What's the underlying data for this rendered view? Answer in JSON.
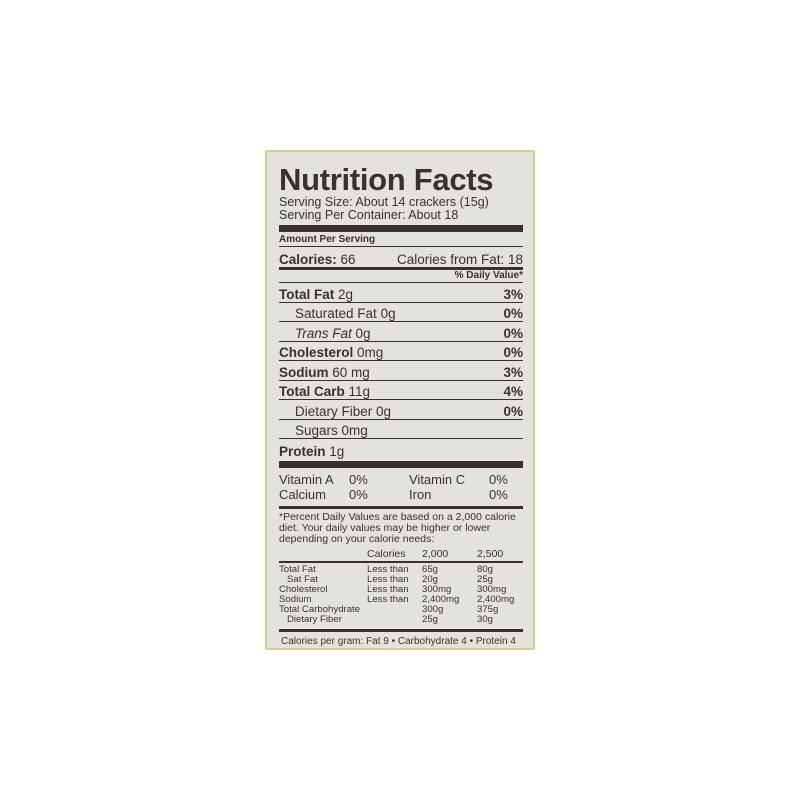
{
  "title": "Nutrition Facts",
  "serving_size": "Serving Size: About 14 crackers (15g)",
  "servings_per_container": "Serving Per Container: About 18",
  "amount_per_serving": "Amount Per Serving",
  "calories_label": "Calories:",
  "calories_value": "66",
  "calories_from_fat": "Calories from Fat: 18",
  "daily_value_header": "% Daily Value*",
  "nutrients": [
    {
      "name": "Total Fat",
      "amount": "2g",
      "dv": "3%"
    },
    {
      "name": "Saturated Fat",
      "amount": "0g",
      "dv": "0%"
    },
    {
      "name": "Trans Fat",
      "amount": "0g",
      "dv": "0%"
    },
    {
      "name": "Cholesterol",
      "amount": "0mg",
      "dv": "0%"
    },
    {
      "name": "Sodium",
      "amount": "60 mg",
      "dv": "3%"
    },
    {
      "name": "Total Carb",
      "amount": "11g",
      "dv": "4%"
    },
    {
      "name": "Dietary Fiber",
      "amount": "0g",
      "dv": "0%"
    },
    {
      "name": "Sugars",
      "amount": "0mg",
      "dv": ""
    },
    {
      "name": "Protein",
      "amount": "1g",
      "dv": ""
    }
  ],
  "vitamins": [
    {
      "name": "Vitamin A",
      "dv": "0%"
    },
    {
      "name": "Vitamin C",
      "dv": "0%"
    },
    {
      "name": "Calcium",
      "dv": "0%"
    },
    {
      "name": "Iron",
      "dv": "0%"
    }
  ],
  "footnote": "*Percent Daily Values are based on a 2,000 calorie diet. Your daily values may be higher or lower depending on your calorie needs:",
  "dv_table": {
    "header": [
      "",
      "Calories",
      "2,000",
      "2,500"
    ],
    "rows": [
      [
        "Total Fat",
        "Less than",
        "65g",
        "80g"
      ],
      [
        "Sat Fat",
        "Less than",
        "20g",
        "25g"
      ],
      [
        "Cholesterol",
        "Less than",
        "300mg",
        "300mg"
      ],
      [
        "Sodium",
        "Less than",
        "2,400mg",
        "2,400mg"
      ],
      [
        "Total Carbohydrate",
        "",
        "300g",
        "375g"
      ],
      [
        "Dietary Fiber",
        "",
        "25g",
        "30g"
      ]
    ]
  },
  "calories_per_gram": "Calories per gram: Fat 9 • Carbohydrate 4 • Protein 4"
}
